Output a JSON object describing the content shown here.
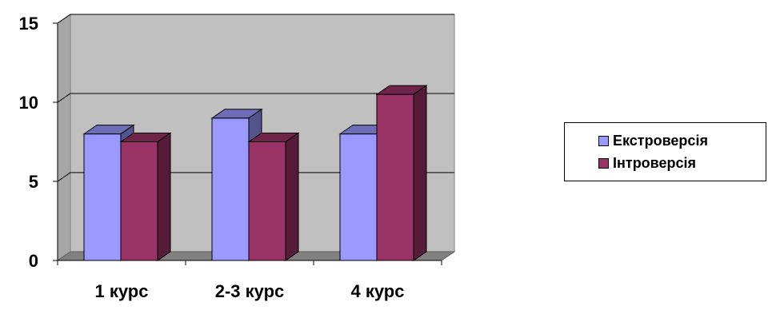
{
  "chart_data": {
    "type": "bar",
    "categories": [
      "1 курс",
      "2-3 курс",
      "4 курс"
    ],
    "series": [
      {
        "name": "Екстроверсія",
        "values": [
          8,
          9,
          8
        ],
        "color": "#9999FF"
      },
      {
        "name": "Інтроверсія",
        "values": [
          7.5,
          7.5,
          10.5
        ],
        "color": "#993366"
      }
    ],
    "y_ticks": [
      "0",
      "5",
      "10",
      "15"
    ],
    "ylim": [
      0,
      15
    ],
    "grid": true,
    "legend_position": "right",
    "style": "3d-clustered-column",
    "wall_color": "#C0C0C0"
  }
}
